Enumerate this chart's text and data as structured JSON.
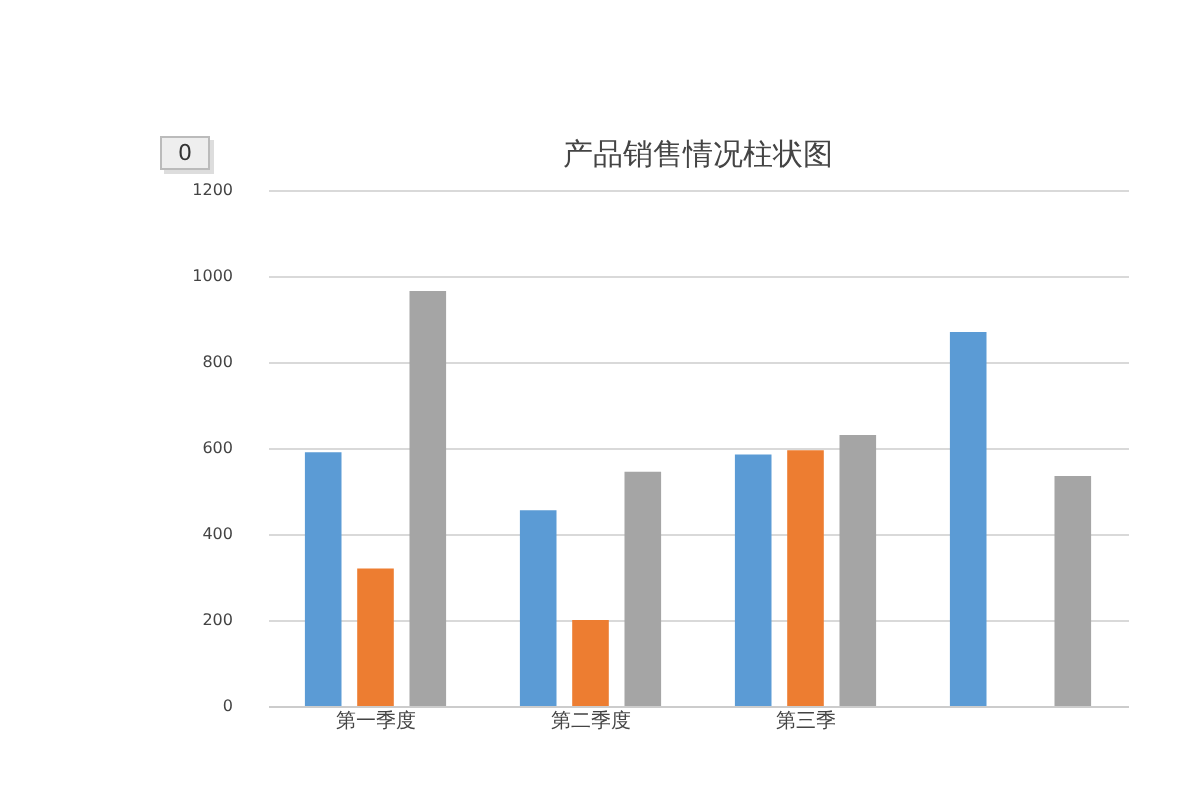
{
  "chart_data": {
    "type": "bar",
    "title": "产品销售情况柱状图",
    "categories": [
      "第一季度",
      "第二季度",
      "第三季",
      null
    ],
    "series": [
      {
        "color": "#5b9bd5",
        "values": [
          590,
          455,
          585,
          870
        ]
      },
      {
        "color": "#ed7d31",
        "values": [
          320,
          200,
          595,
          null
        ]
      },
      {
        "color": "#a5a5a5",
        "values": [
          965,
          545,
          630,
          535
        ]
      }
    ],
    "ylim": [
      0,
      1200
    ],
    "yticks": [
      0,
      200,
      400,
      600,
      800,
      1000,
      1200
    ],
    "grid": "y",
    "legend": false,
    "annotations": [
      "0"
    ]
  }
}
